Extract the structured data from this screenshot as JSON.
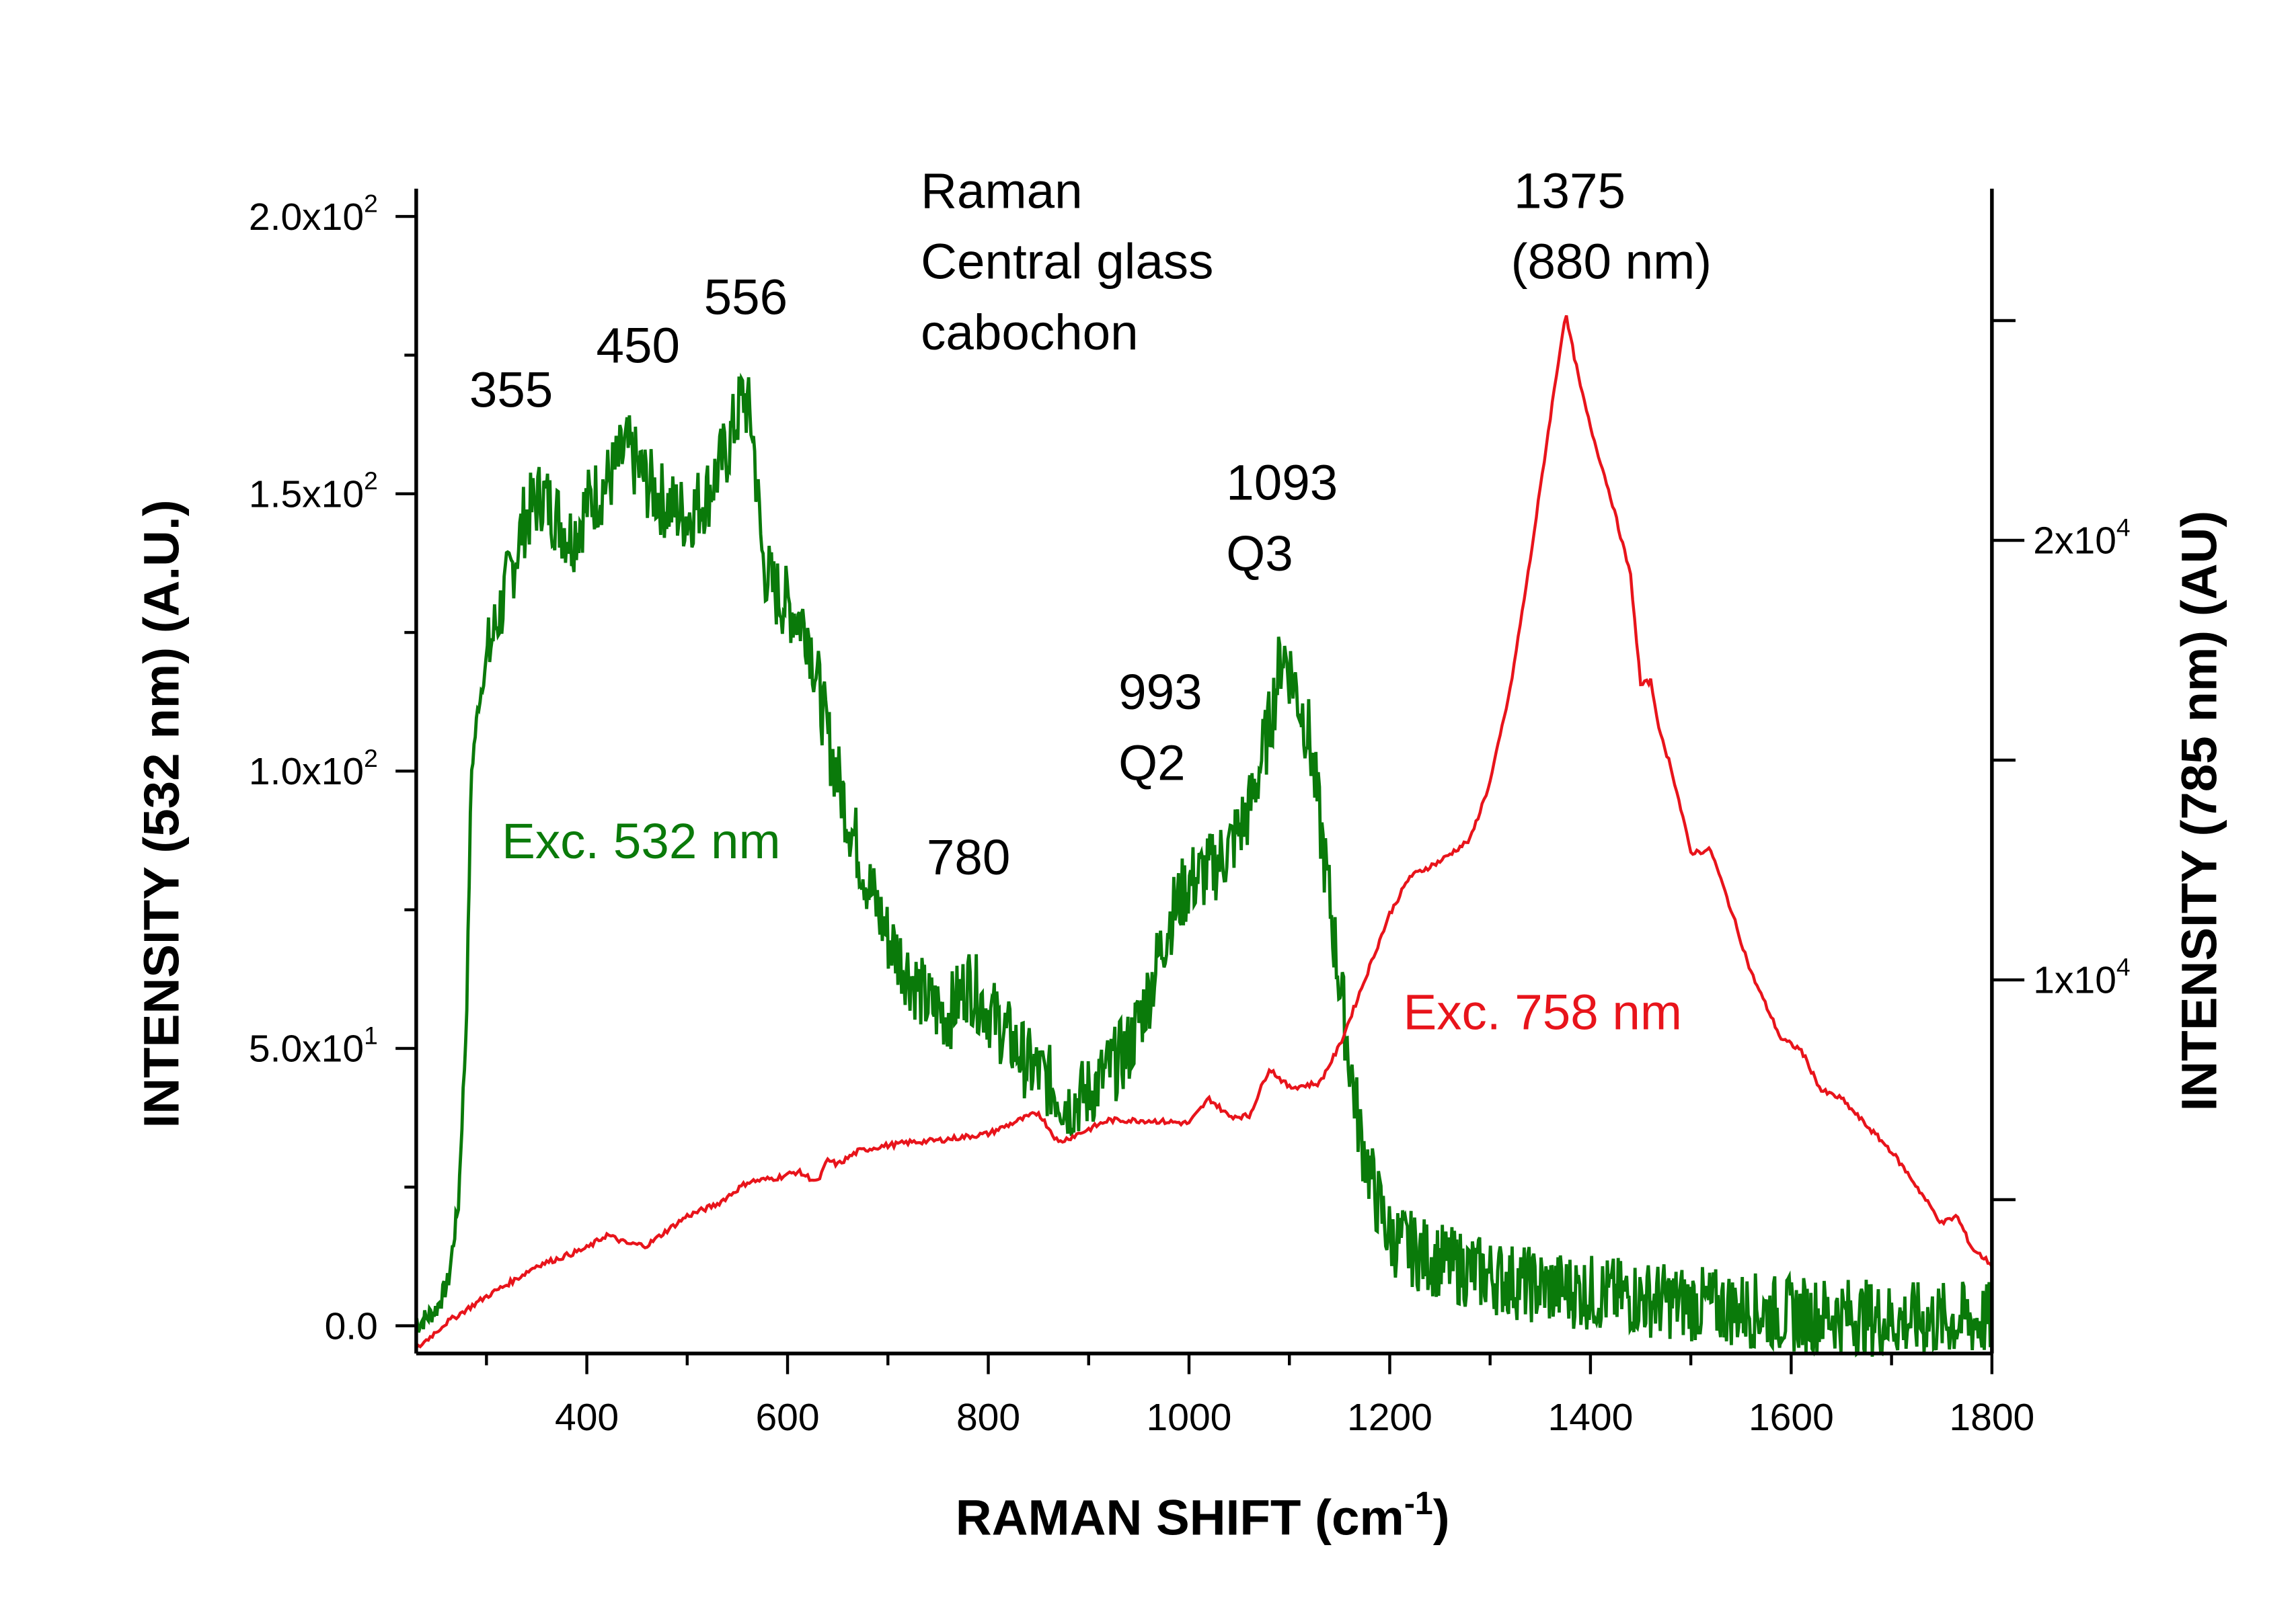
{
  "chart_data": {
    "type": "line",
    "title": "",
    "xlabel": {
      "base": "RAMAN SHIFT (cm",
      "exp": "-1",
      "tail": ")"
    },
    "ylabel_left": "INTENSITY (532 nm) (A.U.)",
    "ylabel_right": "INTENSITY (785 nm) (AU)",
    "xlim": [
      230,
      1800
    ],
    "ylim_left": [
      -5,
      205
    ],
    "ylim_right": [
      1500,
      28000
    ],
    "grid": false,
    "x_ticks": [
      400,
      600,
      800,
      1000,
      1200,
      1400,
      1600,
      1800
    ],
    "x_tick_labels": [
      "400",
      "600",
      "800",
      "1000",
      "1200",
      "1400",
      "1600",
      "1800"
    ],
    "y_left_ticks": [
      {
        "value": 0,
        "base": "0.0",
        "exp": ""
      },
      {
        "value": 50,
        "base": "5.0x10",
        "exp": "1"
      },
      {
        "value": 100,
        "base": "1.0x10",
        "exp": "2"
      },
      {
        "value": 150,
        "base": "1.5x10",
        "exp": "2"
      },
      {
        "value": 200,
        "base": "2.0x10",
        "exp": "2"
      }
    ],
    "y_right_ticks": [
      {
        "value": 10000,
        "base": "1x10",
        "exp": "4"
      },
      {
        "value": 20000,
        "base": "2x10",
        "exp": "4"
      }
    ],
    "series": [
      {
        "name": "Exc. 532 nm",
        "axis": "left",
        "color": "#0a7a0a",
        "x": [
          230,
          250,
          262,
          272,
          280,
          285,
          292,
          300,
          312,
          322,
          337,
          355,
          370,
          385,
          400,
          420,
          440,
          460,
          480,
          500,
          520,
          540,
          556,
          565,
          575,
          585,
          600,
          620,
          640,
          660,
          680,
          700,
          720,
          740,
          760,
          780,
          800,
          820,
          840,
          860,
          880,
          900,
          920,
          940,
          960,
          980,
          1000,
          1020,
          1040,
          1060,
          1080,
          1093,
          1105,
          1120,
          1135,
          1150,
          1160,
          1170,
          1185,
          1200,
          1230,
          1260,
          1300,
          1350,
          1400,
          1450,
          1500,
          1550,
          1600,
          1650,
          1700,
          1750,
          1800
        ],
        "y": [
          0,
          3,
          8,
          22,
          55,
          100,
          112,
          120,
          128,
          134,
          145,
          150,
          146,
          142,
          148,
          152,
          158,
          152,
          148,
          146,
          150,
          158,
          168,
          162,
          138,
          133,
          130,
          126,
          106,
          92,
          80,
          70,
          64,
          58,
          56,
          62,
          57,
          52,
          47,
          44,
          40,
          42,
          46,
          50,
          60,
          73,
          80,
          82,
          86,
          93,
          108,
          122,
          116,
          106,
          84,
          62,
          48,
          35,
          24,
          16,
          13,
          11,
          9,
          7,
          6,
          5,
          4,
          3,
          2,
          2,
          1,
          1,
          1
        ]
      },
      {
        "name": "Exc. 758 nm",
        "axis": "right",
        "color": "#e8141b",
        "x": [
          230,
          260,
          300,
          330,
          350,
          370,
          400,
          420,
          440,
          460,
          480,
          500,
          530,
          560,
          590,
          610,
          630,
          640,
          650,
          670,
          690,
          720,
          750,
          800,
          830,
          850,
          870,
          890,
          920,
          960,
          1000,
          1020,
          1040,
          1060,
          1080,
          1100,
          1130,
          1150,
          1170,
          1200,
          1220,
          1250,
          1280,
          1300,
          1320,
          1340,
          1360,
          1375,
          1390,
          1400,
          1420,
          1440,
          1450,
          1460,
          1470,
          1480,
          1500,
          1520,
          1540,
          1560,
          1590,
          1610,
          1630,
          1650,
          1670,
          1700,
          1720,
          1750,
          1765,
          1780,
          1800
        ],
        "y": [
          1600,
          2200,
          2800,
          3200,
          3500,
          3650,
          3900,
          4200,
          4000,
          3960,
          4300,
          4630,
          4900,
          5400,
          5500,
          5640,
          5400,
          5900,
          5800,
          6100,
          6200,
          6300,
          6350,
          6500,
          6800,
          6980,
          6300,
          6500,
          6810,
          6800,
          6740,
          7300,
          6900,
          6900,
          7990,
          7550,
          7650,
          8500,
          9700,
          11500,
          12350,
          12700,
          13190,
          14500,
          16600,
          19560,
          22800,
          25170,
          23500,
          22580,
          21000,
          19200,
          16710,
          16800,
          15540,
          14870,
          12900,
          12950,
          11600,
          10170,
          8660,
          8400,
          7480,
          7300,
          6810,
          6100,
          5470,
          4460,
          4630,
          3900,
          3520
        ]
      }
    ],
    "legend": "none",
    "annotations": {
      "p355": "355",
      "p450": "450",
      "p556": "556",
      "info": [
        "Raman",
        "Central glass",
        "cabochon"
      ],
      "p1375": [
        "1375",
        "(880 nm)"
      ],
      "p1093": [
        "1093",
        "Q3"
      ],
      "p993": [
        "993",
        "Q2"
      ],
      "p780": "780",
      "exc532": "Exc. 532 nm",
      "exc758": "Exc. 758 nm"
    }
  }
}
